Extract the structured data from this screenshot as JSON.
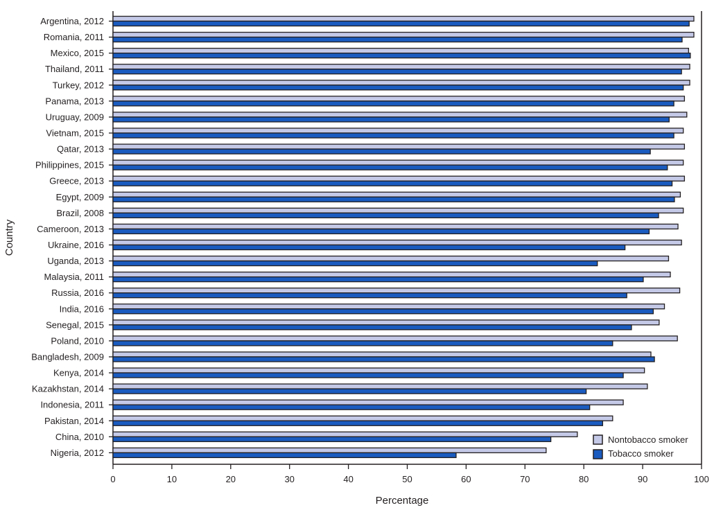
{
  "chart_data": {
    "type": "bar",
    "orientation": "horizontal",
    "title": "",
    "xlabel": "Percentage",
    "ylabel": "Country",
    "xlim": [
      0,
      100
    ],
    "xticks": [
      0,
      10,
      20,
      30,
      40,
      50,
      60,
      70,
      80,
      90,
      100
    ],
    "grid": false,
    "legend_position": "lower right inside",
    "categories": [
      "Argentina, 2012",
      "Romania, 2011",
      "Mexico, 2015",
      "Thailand, 2011",
      "Turkey, 2012",
      "Panama, 2013",
      "Uruguay, 2009",
      "Vietnam, 2015",
      "Qatar, 2013",
      "Philippines, 2015",
      "Greece, 2013",
      "Egypt, 2009",
      "Brazil, 2008",
      "Cameroon, 2013",
      "Ukraine, 2016",
      "Uganda, 2013",
      "Malaysia, 2011",
      "Russia, 2016",
      "India, 2016",
      "Senegal, 2015",
      "Poland, 2010",
      "Bangladesh, 2009",
      "Kenya, 2014",
      "Kazakhstan, 2014",
      "Indonesia, 2011",
      "Pakistan, 2014",
      "China, 2010",
      "Nigeria, 2012"
    ],
    "series": [
      {
        "name": "Nontobacco smoker",
        "color": "#c5c9e8",
        "values": [
          98.7,
          98.7,
          97.8,
          98.0,
          98.0,
          97.1,
          97.5,
          96.9,
          97.1,
          96.9,
          97.1,
          96.4,
          96.9,
          96.0,
          96.6,
          94.4,
          94.7,
          96.3,
          93.7,
          92.8,
          95.9,
          91.4,
          90.3,
          90.8,
          86.7,
          84.9,
          78.9,
          73.6
        ]
      },
      {
        "name": "Tobacco smoker",
        "color": "#1a5bbf",
        "values": [
          97.9,
          96.7,
          98.1,
          96.6,
          96.9,
          95.3,
          94.5,
          95.3,
          91.3,
          94.2,
          95.0,
          95.4,
          92.7,
          91.1,
          87.0,
          82.3,
          90.1,
          87.3,
          91.8,
          88.1,
          84.9,
          92.0,
          86.7,
          80.4,
          81.0,
          83.2,
          74.4,
          58.3
        ]
      }
    ]
  }
}
